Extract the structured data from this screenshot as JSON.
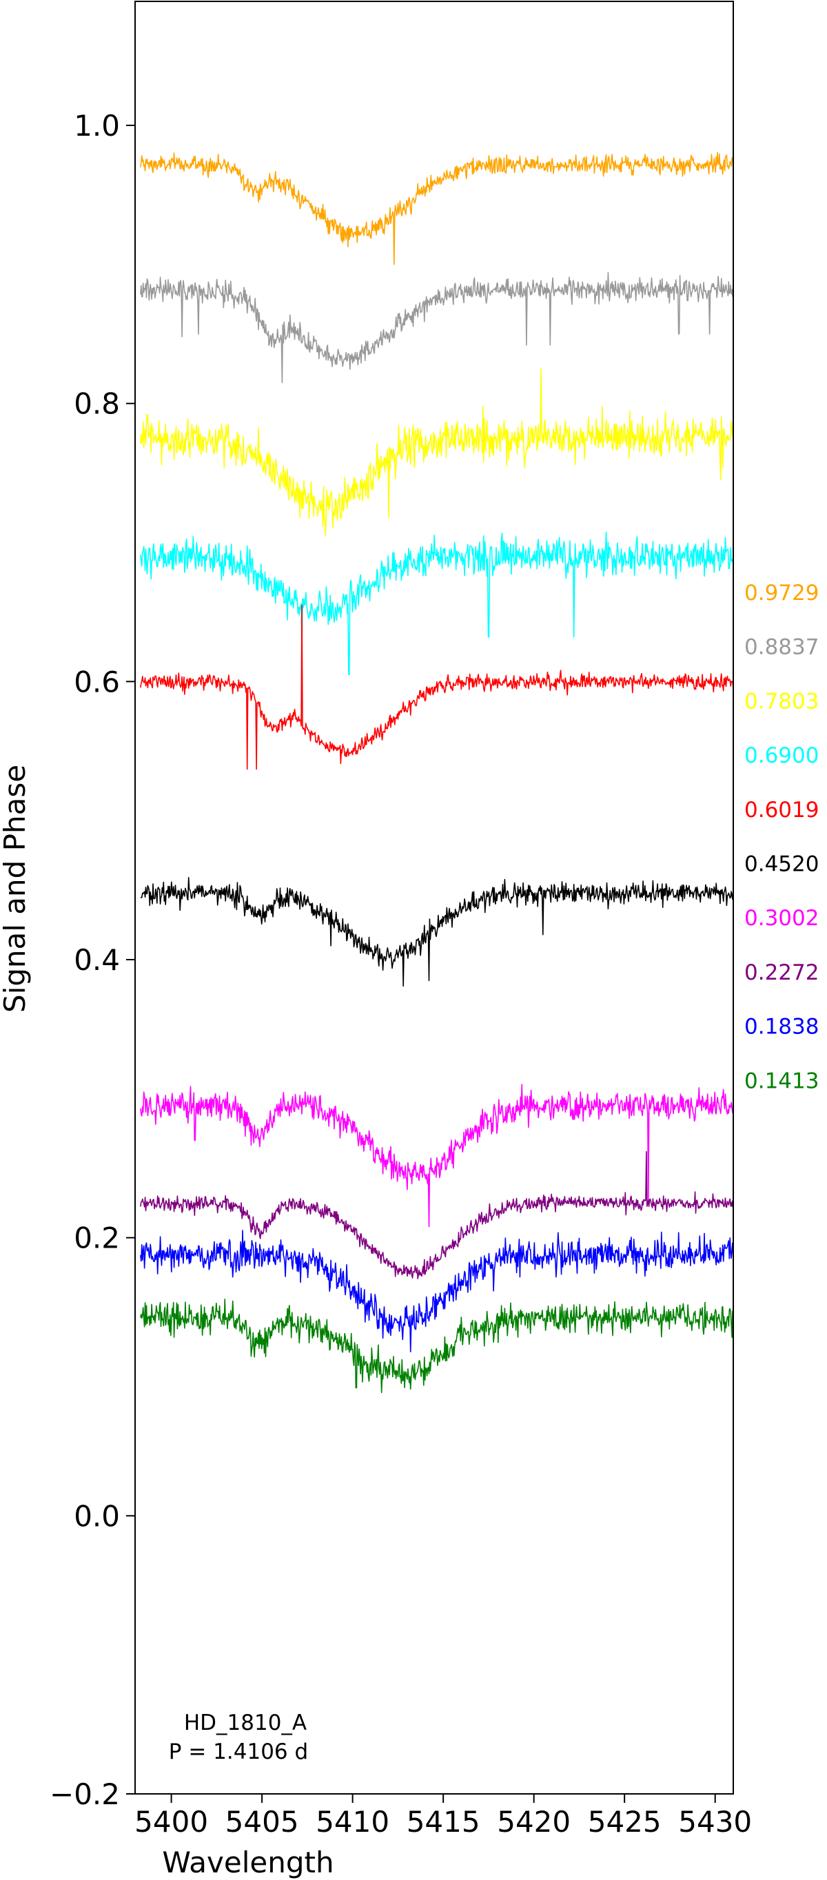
{
  "chart_data": {
    "type": "line",
    "title": "",
    "xlabel": "Wavelength",
    "ylabel": "Signal and Phase",
    "xlim": [
      5398,
      5431
    ],
    "ylim": [
      -0.2,
      1.09
    ],
    "x_ticks": [
      5400,
      5405,
      5410,
      5415,
      5420,
      5425,
      5430
    ],
    "x_tick_labels": [
      "5400",
      "5405",
      "5410",
      "5415",
      "5420",
      "5425",
      "5430"
    ],
    "y_ticks": [
      -0.2,
      0.0,
      0.2,
      0.4,
      0.6,
      0.8,
      1.0
    ],
    "y_tick_labels": [
      "−0.2",
      "0.0",
      "0.2",
      "0.4",
      "0.6",
      "0.8",
      "1.0"
    ],
    "grid": false,
    "annotation": {
      "line1": "HD_1810_A",
      "line2": "P = 1.4106 d"
    },
    "series": [
      {
        "phase_label": "0.9729",
        "color": "#FFA500",
        "baseline": 0.972,
        "noise": 0.006,
        "absorption": [
          {
            "center": 5410.3,
            "depth": 0.05,
            "width": 2.6
          },
          {
            "center": 5404.6,
            "depth": 0.015,
            "width": 0.5
          }
        ],
        "spikes": [
          {
            "x": 5412.3,
            "value": 0.9
          }
        ]
      },
      {
        "phase_label": "0.8837",
        "color": "#999999",
        "baseline": 0.882,
        "noise": 0.007,
        "absorption": [
          {
            "center": 5409.5,
            "depth": 0.05,
            "width": 2.6
          },
          {
            "center": 5405.5,
            "depth": 0.02,
            "width": 0.6
          }
        ],
        "spikes": [
          {
            "x": 5400.6,
            "value": 0.848
          },
          {
            "x": 5401.5,
            "value": 0.85
          },
          {
            "x": 5406.1,
            "value": 0.815
          },
          {
            "x": 5419.6,
            "value": 0.842
          },
          {
            "x": 5420.9,
            "value": 0.842
          },
          {
            "x": 5428.0,
            "value": 0.85
          },
          {
            "x": 5429.7,
            "value": 0.85
          }
        ]
      },
      {
        "phase_label": "0.7803",
        "color": "#FFFF00",
        "baseline": 0.775,
        "noise": 0.013,
        "absorption": [
          {
            "center": 5408.5,
            "depth": 0.05,
            "width": 2.3
          }
        ],
        "spikes": [
          {
            "x": 5408.5,
            "value": 0.705
          },
          {
            "x": 5412.0,
            "value": 0.718
          },
          {
            "x": 5420.4,
            "value": 0.825
          },
          {
            "x": 5430.3,
            "value": 0.745
          }
        ]
      },
      {
        "phase_label": "0.6900",
        "color": "#00FFFF",
        "baseline": 0.69,
        "noise": 0.011,
        "absorption": [
          {
            "center": 5408.2,
            "depth": 0.04,
            "width": 2.3
          }
        ],
        "spikes": [
          {
            "x": 5407.2,
            "value": 0.625
          },
          {
            "x": 5409.8,
            "value": 0.605
          },
          {
            "x": 5417.5,
            "value": 0.632
          },
          {
            "x": 5422.2,
            "value": 0.632
          }
        ]
      },
      {
        "phase_label": "0.6019",
        "color": "#FF0000",
        "baseline": 0.6,
        "noise": 0.005,
        "absorption": [
          {
            "center": 5409.6,
            "depth": 0.05,
            "width": 2.4
          },
          {
            "center": 5405.5,
            "depth": 0.02,
            "width": 0.6
          }
        ],
        "spikes": [
          {
            "x": 5404.2,
            "value": 0.537
          },
          {
            "x": 5404.7,
            "value": 0.537
          },
          {
            "x": 5407.2,
            "value": 0.655
          }
        ]
      },
      {
        "phase_label": "0.4520",
        "color": "#000000",
        "baseline": 0.448,
        "noise": 0.007,
        "absorption": [
          {
            "center": 5412.0,
            "depth": 0.045,
            "width": 2.4
          },
          {
            "center": 5404.8,
            "depth": 0.015,
            "width": 0.6
          }
        ],
        "spikes": [
          {
            "x": 5408.8,
            "value": 0.41
          },
          {
            "x": 5412.8,
            "value": 0.381
          },
          {
            "x": 5414.2,
            "value": 0.385
          },
          {
            "x": 5420.5,
            "value": 0.418
          }
        ]
      },
      {
        "phase_label": "0.3002",
        "color": "#FF00FF",
        "baseline": 0.295,
        "noise": 0.009,
        "absorption": [
          {
            "center": 5413.5,
            "depth": 0.05,
            "width": 2.3
          },
          {
            "center": 5404.8,
            "depth": 0.02,
            "width": 0.6
          }
        ],
        "spikes": [
          {
            "x": 5414.2,
            "value": 0.208
          },
          {
            "x": 5426.3,
            "value": 0.225
          },
          {
            "x": 5401.3,
            "value": 0.27
          }
        ]
      },
      {
        "phase_label": "0.2272",
        "color": "#800080",
        "baseline": 0.225,
        "noise": 0.005,
        "absorption": [
          {
            "center": 5413.2,
            "depth": 0.05,
            "width": 2.3
          },
          {
            "center": 5404.9,
            "depth": 0.02,
            "width": 0.6
          }
        ],
        "spikes": [
          {
            "x": 5426.2,
            "value": 0.262
          }
        ]
      },
      {
        "phase_label": "0.1838",
        "color": "#0000FF",
        "baseline": 0.188,
        "noise": 0.01,
        "absorption": [
          {
            "center": 5412.8,
            "depth": 0.05,
            "width": 2.4
          }
        ],
        "spikes": [
          {
            "x": 5413.2,
            "value": 0.118
          }
        ]
      },
      {
        "phase_label": "0.1413",
        "color": "#008000",
        "baseline": 0.142,
        "noise": 0.01,
        "absorption": [
          {
            "center": 5412.5,
            "depth": 0.04,
            "width": 2.5
          },
          {
            "center": 5404.8,
            "depth": 0.02,
            "width": 0.6
          }
        ],
        "spikes": [
          {
            "x": 5410.2,
            "value": 0.092
          }
        ]
      }
    ]
  }
}
